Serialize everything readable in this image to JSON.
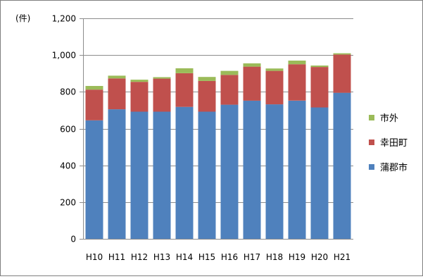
{
  "chart_data": {
    "type": "bar",
    "stacked": true,
    "categories": [
      "H10",
      "H11",
      "H12",
      "H13",
      "H14",
      "H15",
      "H16",
      "H17",
      "H18",
      "H19",
      "H20",
      "H21"
    ],
    "series": [
      {
        "name": "蒲郡市",
        "color": "#4F81BD",
        "values": [
          645,
          705,
          692,
          692,
          718,
          692,
          730,
          752,
          732,
          752,
          715,
          795
        ]
      },
      {
        "name": "幸田町",
        "color": "#C0504D",
        "values": [
          167,
          168,
          162,
          180,
          183,
          167,
          162,
          185,
          182,
          198,
          220,
          208
        ]
      },
      {
        "name": "市外",
        "color": "#9BBB59",
        "values": [
          20,
          15,
          12,
          8,
          27,
          22,
          22,
          18,
          13,
          20,
          8,
          7
        ]
      }
    ],
    "ylim": [
      0,
      1200
    ],
    "yticks": [
      0,
      200,
      400,
      600,
      800,
      1000,
      1200
    ],
    "ytick_labels": [
      "0",
      "200",
      "400",
      "600",
      "800",
      "1,000",
      "1,200"
    ],
    "yunit": "(件)",
    "gridlines": true,
    "legend_position": "right",
    "legend_order": [
      "市外",
      "幸田町",
      "蒲郡市"
    ]
  }
}
